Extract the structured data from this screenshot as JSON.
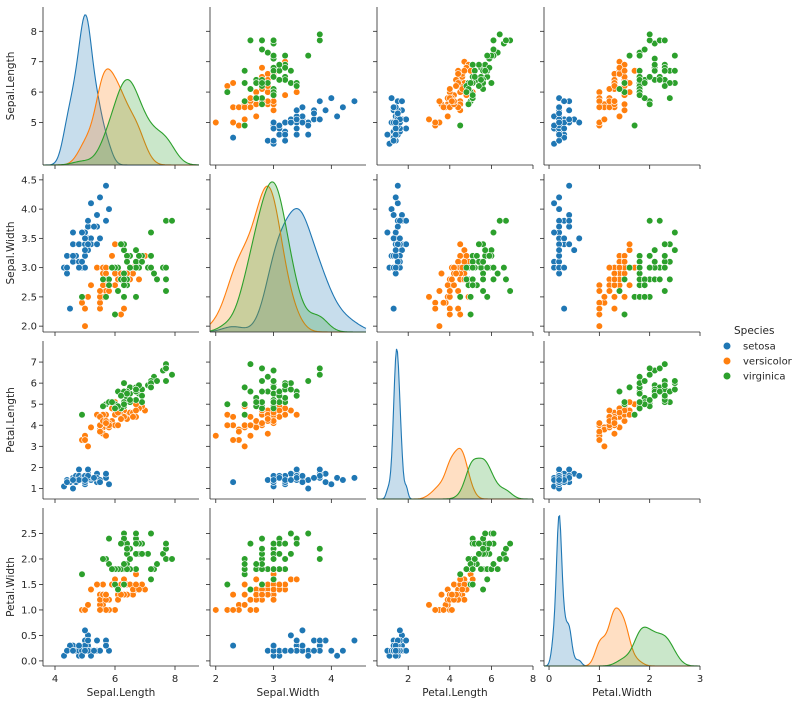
{
  "chart_data": {
    "type": "scatter",
    "variables": [
      "Sepal.Length",
      "Sepal.Width",
      "Petal.Length",
      "Petal.Width"
    ],
    "axis_ranges": {
      "Sepal.Length": [
        3.6,
        8.8
      ],
      "Sepal.Width": [
        1.9,
        4.6
      ],
      "Petal.Length": [
        0.5,
        8.0
      ],
      "Petal.Width": [
        -0.1,
        3.0
      ]
    },
    "ticks": {
      "Sepal.Length": [
        4,
        6,
        8
      ],
      "Sepal.Width": [
        2,
        3,
        4,
        5
      ],
      "Petal.Length": [
        0,
        2,
        4,
        6,
        8
      ],
      "Petal.Width": [
        0,
        1,
        2,
        3
      ]
    },
    "row_ticks": {
      "Sepal.Length": [
        5,
        6,
        7,
        8
      ],
      "Sepal.Width": [
        2.0,
        2.5,
        3.0,
        3.5,
        4.0,
        4.5
      ],
      "Petal.Length": [
        1,
        2,
        3,
        4,
        5,
        6,
        7
      ],
      "Petal.Width": [
        0.0,
        0.5,
        1.0,
        1.5,
        2.0,
        2.5
      ]
    },
    "row_tick_labels": {
      "Sepal.Width": [
        "2.0",
        "2.5",
        "3.0",
        "3.5",
        "4.0",
        "4.5"
      ],
      "Petal.Width": [
        "0.0",
        "0.5",
        "1.0",
        "1.5",
        "2.0",
        "2.5"
      ]
    },
    "grid": false,
    "legend": {
      "title": "Species",
      "placement": "right",
      "entries": [
        {
          "name": "setosa",
          "color": "#1f77b4"
        },
        {
          "name": "versicolor",
          "color": "#ff7f0e"
        },
        {
          "name": "virginica",
          "color": "#2ca02c"
        }
      ]
    },
    "diagonal": "kde",
    "series": [
      {
        "name": "setosa",
        "color": "#1f77b4",
        "points": [
          [
            5.1,
            3.5,
            1.4,
            0.2
          ],
          [
            4.9,
            3.0,
            1.4,
            0.2
          ],
          [
            4.7,
            3.2,
            1.3,
            0.2
          ],
          [
            4.6,
            3.1,
            1.5,
            0.2
          ],
          [
            5.0,
            3.6,
            1.4,
            0.2
          ],
          [
            5.4,
            3.9,
            1.7,
            0.4
          ],
          [
            4.6,
            3.4,
            1.4,
            0.3
          ],
          [
            5.0,
            3.4,
            1.5,
            0.2
          ],
          [
            4.4,
            2.9,
            1.4,
            0.2
          ],
          [
            4.9,
            3.1,
            1.5,
            0.1
          ],
          [
            5.4,
            3.7,
            1.5,
            0.2
          ],
          [
            4.8,
            3.4,
            1.6,
            0.2
          ],
          [
            4.8,
            3.0,
            1.4,
            0.1
          ],
          [
            4.3,
            3.0,
            1.1,
            0.1
          ],
          [
            5.8,
            4.0,
            1.2,
            0.2
          ],
          [
            5.7,
            4.4,
            1.5,
            0.4
          ],
          [
            5.4,
            3.9,
            1.3,
            0.4
          ],
          [
            5.1,
            3.5,
            1.4,
            0.3
          ],
          [
            5.7,
            3.8,
            1.7,
            0.3
          ],
          [
            5.1,
            3.8,
            1.5,
            0.3
          ],
          [
            5.4,
            3.4,
            1.7,
            0.2
          ],
          [
            5.1,
            3.7,
            1.5,
            0.4
          ],
          [
            4.6,
            3.6,
            1.0,
            0.2
          ],
          [
            5.1,
            3.3,
            1.7,
            0.5
          ],
          [
            4.8,
            3.4,
            1.9,
            0.2
          ],
          [
            5.0,
            3.0,
            1.6,
            0.2
          ],
          [
            5.0,
            3.4,
            1.6,
            0.4
          ],
          [
            5.2,
            3.5,
            1.5,
            0.2
          ],
          [
            5.2,
            3.4,
            1.4,
            0.2
          ],
          [
            4.7,
            3.2,
            1.6,
            0.2
          ],
          [
            4.8,
            3.1,
            1.6,
            0.2
          ],
          [
            5.4,
            3.4,
            1.5,
            0.4
          ],
          [
            5.2,
            4.1,
            1.5,
            0.1
          ],
          [
            5.5,
            4.2,
            1.4,
            0.2
          ],
          [
            4.9,
            3.1,
            1.5,
            0.2
          ],
          [
            5.0,
            3.2,
            1.2,
            0.2
          ],
          [
            5.5,
            3.5,
            1.3,
            0.2
          ],
          [
            4.9,
            3.6,
            1.4,
            0.1
          ],
          [
            4.4,
            3.0,
            1.3,
            0.2
          ],
          [
            5.1,
            3.4,
            1.5,
            0.2
          ],
          [
            5.0,
            3.5,
            1.3,
            0.3
          ],
          [
            4.5,
            2.3,
            1.3,
            0.3
          ],
          [
            4.4,
            3.2,
            1.3,
            0.2
          ],
          [
            5.0,
            3.5,
            1.6,
            0.6
          ],
          [
            5.1,
            3.8,
            1.9,
            0.4
          ],
          [
            4.8,
            3.0,
            1.4,
            0.3
          ],
          [
            5.1,
            3.8,
            1.6,
            0.2
          ],
          [
            4.6,
            3.2,
            1.4,
            0.2
          ],
          [
            5.3,
            3.7,
            1.5,
            0.2
          ],
          [
            5.0,
            3.3,
            1.4,
            0.2
          ]
        ]
      },
      {
        "name": "versicolor",
        "color": "#ff7f0e",
        "points": [
          [
            7.0,
            3.2,
            4.7,
            1.4
          ],
          [
            6.4,
            3.2,
            4.5,
            1.5
          ],
          [
            6.9,
            3.1,
            4.9,
            1.5
          ],
          [
            5.5,
            2.3,
            4.0,
            1.3
          ],
          [
            6.5,
            2.8,
            4.6,
            1.5
          ],
          [
            5.7,
            2.8,
            4.5,
            1.3
          ],
          [
            6.3,
            3.3,
            4.7,
            1.6
          ],
          [
            4.9,
            2.4,
            3.3,
            1.0
          ],
          [
            6.6,
            2.9,
            4.6,
            1.3
          ],
          [
            5.2,
            2.7,
            3.9,
            1.4
          ],
          [
            5.0,
            2.0,
            3.5,
            1.0
          ],
          [
            5.9,
            3.0,
            4.2,
            1.5
          ],
          [
            6.0,
            2.2,
            4.0,
            1.0
          ],
          [
            6.1,
            2.9,
            4.7,
            1.4
          ],
          [
            5.6,
            2.9,
            3.6,
            1.3
          ],
          [
            6.7,
            3.1,
            4.4,
            1.4
          ],
          [
            5.6,
            3.0,
            4.5,
            1.5
          ],
          [
            5.8,
            2.7,
            4.1,
            1.0
          ],
          [
            6.2,
            2.2,
            4.5,
            1.5
          ],
          [
            5.6,
            2.5,
            3.9,
            1.1
          ],
          [
            5.9,
            3.2,
            4.8,
            1.8
          ],
          [
            6.1,
            2.8,
            4.0,
            1.3
          ],
          [
            6.3,
            2.5,
            4.9,
            1.5
          ],
          [
            6.1,
            2.8,
            4.7,
            1.2
          ],
          [
            6.4,
            2.9,
            4.3,
            1.3
          ],
          [
            6.6,
            3.0,
            4.4,
            1.4
          ],
          [
            6.8,
            2.8,
            4.8,
            1.4
          ],
          [
            6.7,
            3.0,
            5.0,
            1.7
          ],
          [
            6.0,
            2.9,
            4.5,
            1.5
          ],
          [
            5.7,
            2.6,
            3.5,
            1.0
          ],
          [
            5.5,
            2.4,
            3.8,
            1.1
          ],
          [
            5.5,
            2.4,
            3.7,
            1.0
          ],
          [
            5.8,
            2.7,
            3.9,
            1.2
          ],
          [
            6.0,
            2.7,
            5.1,
            1.6
          ],
          [
            5.4,
            3.0,
            4.5,
            1.5
          ],
          [
            6.0,
            3.4,
            4.5,
            1.6
          ],
          [
            6.7,
            3.1,
            4.7,
            1.5
          ],
          [
            6.3,
            2.3,
            4.4,
            1.3
          ],
          [
            5.6,
            3.0,
            4.1,
            1.3
          ],
          [
            5.5,
            2.5,
            4.0,
            1.3
          ],
          [
            5.5,
            2.6,
            4.4,
            1.2
          ],
          [
            6.1,
            3.0,
            4.6,
            1.4
          ],
          [
            5.8,
            2.6,
            4.0,
            1.2
          ],
          [
            5.0,
            2.3,
            3.3,
            1.0
          ],
          [
            5.6,
            2.7,
            4.2,
            1.3
          ],
          [
            5.7,
            3.0,
            4.2,
            1.2
          ],
          [
            5.7,
            2.9,
            4.2,
            1.3
          ],
          [
            6.2,
            2.9,
            4.3,
            1.3
          ],
          [
            5.1,
            2.5,
            3.0,
            1.1
          ],
          [
            5.7,
            2.8,
            4.1,
            1.3
          ]
        ]
      },
      {
        "name": "virginica",
        "color": "#2ca02c",
        "points": [
          [
            6.3,
            3.3,
            6.0,
            2.5
          ],
          [
            5.8,
            2.7,
            5.1,
            1.9
          ],
          [
            7.1,
            3.0,
            5.9,
            2.1
          ],
          [
            6.3,
            2.9,
            5.6,
            1.8
          ],
          [
            6.5,
            3.0,
            5.8,
            2.2
          ],
          [
            7.6,
            3.0,
            6.6,
            2.1
          ],
          [
            4.9,
            2.5,
            4.5,
            1.7
          ],
          [
            7.3,
            2.9,
            6.3,
            1.8
          ],
          [
            6.7,
            2.5,
            5.8,
            1.8
          ],
          [
            7.2,
            3.6,
            6.1,
            2.5
          ],
          [
            6.5,
            3.2,
            5.1,
            2.0
          ],
          [
            6.4,
            2.7,
            5.3,
            1.9
          ],
          [
            6.8,
            3.0,
            5.5,
            2.1
          ],
          [
            5.7,
            2.5,
            5.0,
            2.0
          ],
          [
            5.8,
            2.8,
            5.1,
            2.4
          ],
          [
            6.4,
            3.2,
            5.3,
            2.3
          ],
          [
            6.5,
            3.0,
            5.5,
            1.8
          ],
          [
            7.7,
            3.8,
            6.7,
            2.2
          ],
          [
            7.7,
            2.6,
            6.9,
            2.3
          ],
          [
            6.0,
            2.2,
            5.0,
            1.5
          ],
          [
            6.9,
            3.2,
            5.7,
            2.3
          ],
          [
            5.6,
            2.8,
            4.9,
            2.0
          ],
          [
            7.7,
            2.8,
            6.7,
            2.0
          ],
          [
            6.3,
            2.7,
            4.9,
            1.8
          ],
          [
            6.7,
            3.3,
            5.7,
            2.1
          ],
          [
            7.2,
            3.2,
            6.0,
            1.8
          ],
          [
            6.2,
            2.8,
            4.8,
            1.8
          ],
          [
            6.1,
            3.0,
            4.9,
            1.8
          ],
          [
            6.4,
            2.8,
            5.6,
            2.1
          ],
          [
            7.2,
            3.0,
            5.8,
            1.6
          ],
          [
            7.4,
            2.8,
            6.1,
            1.9
          ],
          [
            7.9,
            3.8,
            6.4,
            2.0
          ],
          [
            6.4,
            2.8,
            5.6,
            2.2
          ],
          [
            6.3,
            2.8,
            5.1,
            1.5
          ],
          [
            6.1,
            2.6,
            5.6,
            1.4
          ],
          [
            7.7,
            3.0,
            6.1,
            2.3
          ],
          [
            6.3,
            3.4,
            5.6,
            2.4
          ],
          [
            6.4,
            3.1,
            5.5,
            1.8
          ],
          [
            6.0,
            3.0,
            4.8,
            1.8
          ],
          [
            6.9,
            3.1,
            5.4,
            2.1
          ],
          [
            6.7,
            3.1,
            5.6,
            2.4
          ],
          [
            6.9,
            3.1,
            5.1,
            2.3
          ],
          [
            5.8,
            2.7,
            5.1,
            1.9
          ],
          [
            6.8,
            3.2,
            5.9,
            2.3
          ],
          [
            6.7,
            3.3,
            5.7,
            2.5
          ],
          [
            6.7,
            3.0,
            5.2,
            2.3
          ],
          [
            6.3,
            2.5,
            5.0,
            1.9
          ],
          [
            6.5,
            3.0,
            5.2,
            2.0
          ],
          [
            6.2,
            3.4,
            5.4,
            2.3
          ],
          [
            5.9,
            3.0,
            5.1,
            1.8
          ]
        ]
      }
    ]
  }
}
